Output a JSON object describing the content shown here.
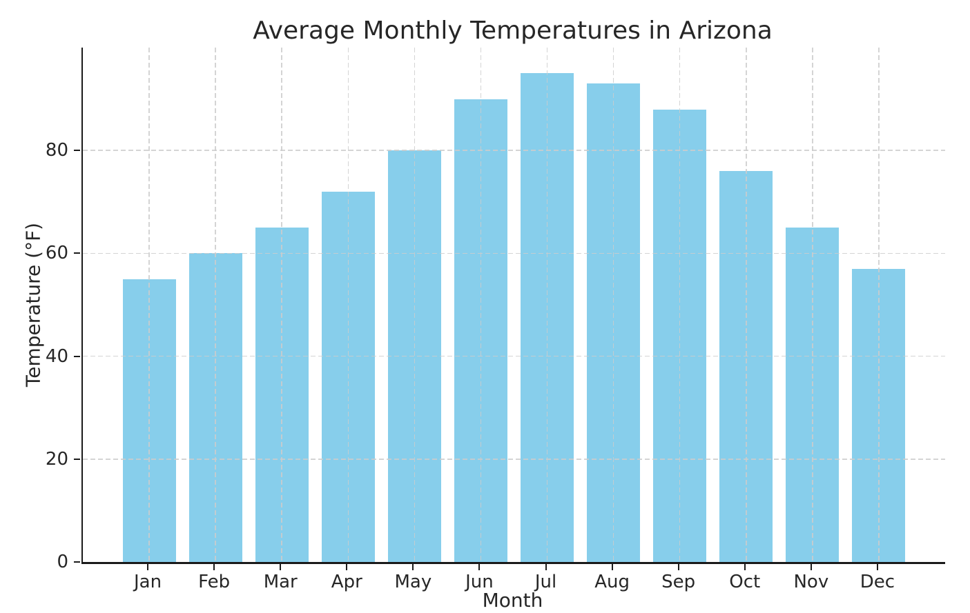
{
  "chart_data": {
    "type": "bar",
    "title": "Average Monthly Temperatures in Arizona",
    "xlabel": "Month",
    "ylabel": "Temperature (°F)",
    "categories": [
      "Jan",
      "Feb",
      "Mar",
      "Apr",
      "May",
      "Jun",
      "Jul",
      "Aug",
      "Sep",
      "Oct",
      "Nov",
      "Dec"
    ],
    "values": [
      55,
      60,
      65,
      72,
      80,
      90,
      95,
      93,
      88,
      76,
      65,
      57
    ],
    "ylim": [
      0,
      100
    ],
    "yticks": [
      0,
      20,
      40,
      60,
      80
    ],
    "bar_color": "#87CEEB",
    "background_color": "#ffffff",
    "axis_color": "#1a1a1a",
    "text_color": "#262626",
    "grid": {
      "visible": true,
      "style": "dashed",
      "color": "#cccccc",
      "drawn_over_bars": true
    },
    "bar_width_fraction": 0.8,
    "legend_visible": false
  }
}
